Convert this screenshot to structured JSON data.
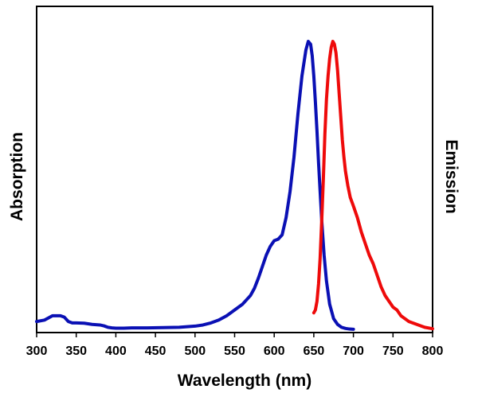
{
  "chart_data": {
    "type": "line",
    "title": "",
    "xlabel": "Wavelength (nm)",
    "ylabel_left": "Absorption",
    "ylabel_right": "Emission",
    "xlim": [
      300,
      800
    ],
    "ylim": [
      0,
      1.05
    ],
    "x_ticks": [
      "300",
      "350",
      "400",
      "450",
      "500",
      "550",
      "600",
      "650",
      "700",
      "750",
      "800"
    ],
    "grid": false,
    "colors": {
      "absorption": "#0a10b4",
      "emission": "#ee0a0a",
      "axis": "#000000"
    },
    "series": [
      {
        "name": "Absorption",
        "x": [
          300,
          310,
          320,
          330,
          335,
          340,
          345,
          350,
          360,
          370,
          380,
          385,
          390,
          395,
          400,
          410,
          420,
          440,
          460,
          480,
          500,
          510,
          520,
          530,
          540,
          550,
          560,
          570,
          575,
          580,
          585,
          590,
          595,
          600,
          605,
          610,
          615,
          620,
          625,
          630,
          635,
          640,
          643,
          646,
          648,
          650,
          652,
          654,
          656,
          658,
          660,
          663,
          666,
          670,
          675,
          680,
          685,
          690,
          695,
          700
        ],
        "values": [
          0.03,
          0.035,
          0.05,
          0.05,
          0.045,
          0.03,
          0.025,
          0.025,
          0.024,
          0.02,
          0.018,
          0.015,
          0.01,
          0.008,
          0.007,
          0.007,
          0.008,
          0.008,
          0.009,
          0.01,
          0.014,
          0.018,
          0.025,
          0.035,
          0.05,
          0.07,
          0.09,
          0.12,
          0.145,
          0.18,
          0.22,
          0.26,
          0.29,
          0.31,
          0.315,
          0.33,
          0.39,
          0.48,
          0.6,
          0.75,
          0.88,
          0.97,
          1.0,
          0.99,
          0.95,
          0.88,
          0.79,
          0.69,
          0.58,
          0.48,
          0.38,
          0.26,
          0.17,
          0.09,
          0.04,
          0.02,
          0.01,
          0.006,
          0.004,
          0.003
        ]
      },
      {
        "name": "Emission",
        "x": [
          650,
          652,
          654,
          656,
          658,
          660,
          662,
          664,
          666,
          668,
          670,
          672,
          674,
          676,
          678,
          680,
          682,
          684,
          686,
          688,
          690,
          693,
          696,
          700,
          705,
          710,
          715,
          720,
          725,
          730,
          735,
          740,
          745,
          750,
          755,
          760,
          765,
          770,
          780,
          790,
          800
        ],
        "values": [
          0.06,
          0.07,
          0.1,
          0.16,
          0.25,
          0.38,
          0.52,
          0.68,
          0.8,
          0.88,
          0.94,
          0.98,
          1.0,
          0.99,
          0.96,
          0.9,
          0.82,
          0.74,
          0.66,
          0.6,
          0.55,
          0.5,
          0.46,
          0.43,
          0.39,
          0.34,
          0.3,
          0.26,
          0.23,
          0.19,
          0.15,
          0.12,
          0.1,
          0.08,
          0.07,
          0.05,
          0.04,
          0.03,
          0.02,
          0.01,
          0.005
        ]
      }
    ]
  }
}
